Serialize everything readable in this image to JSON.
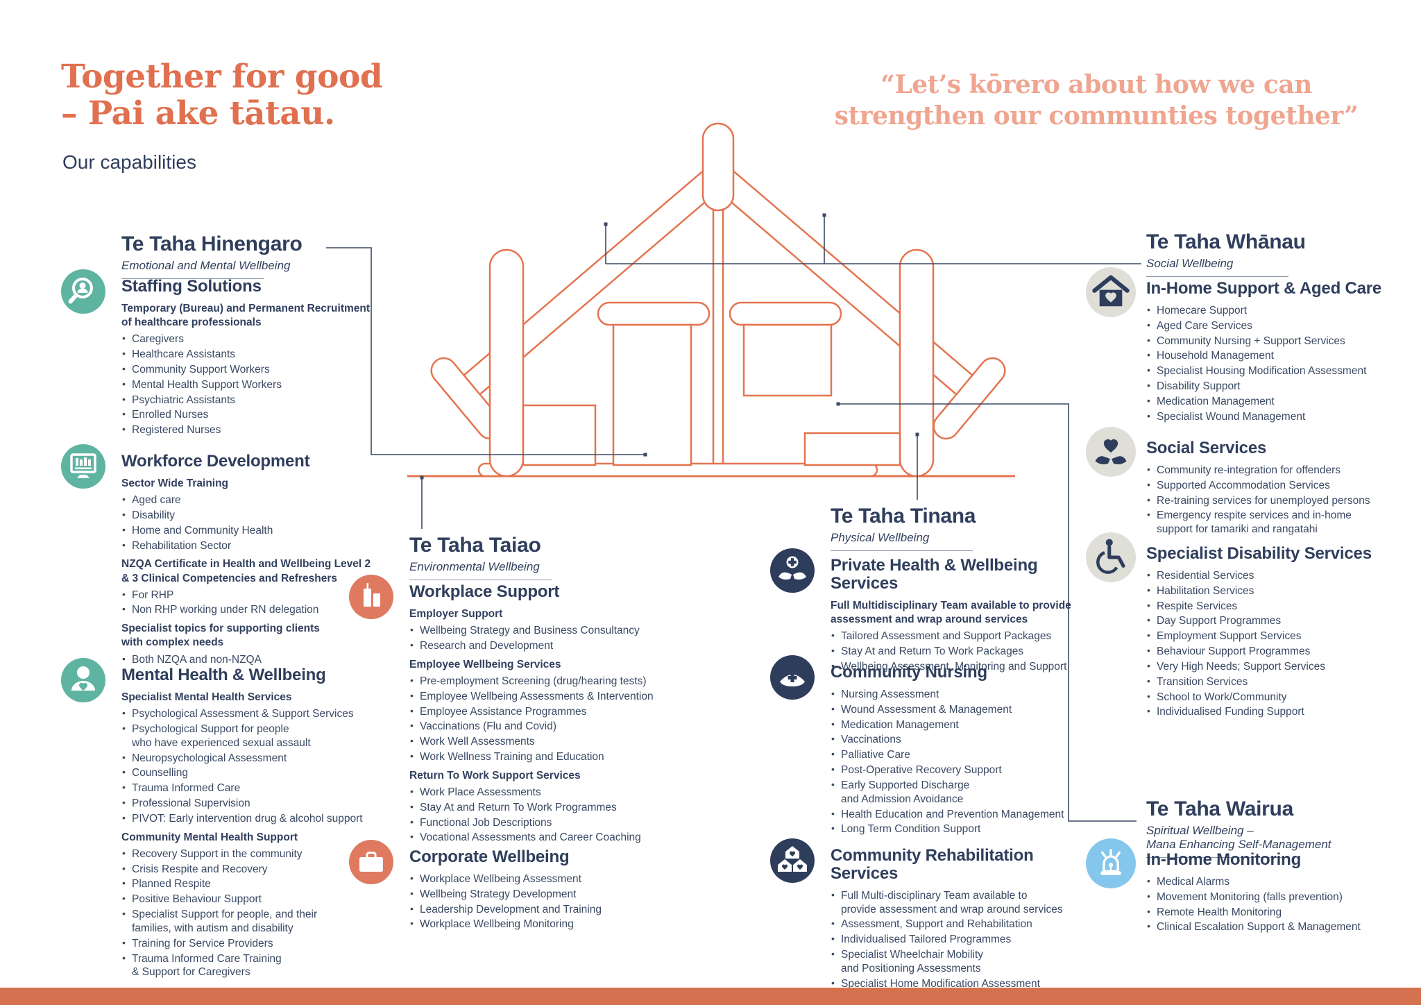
{
  "header": {
    "title_line1": "Together for good",
    "title_line2": "– Pai ake tātau.",
    "subtitle": "Our capabilities",
    "quote_line1": "“Let’s kōrero about how we can",
    "quote_line2": "strengthen our communties together”"
  },
  "colors": {
    "title_coral": "#E0704F",
    "quote_salmon": "#EFA58F",
    "navy_text": "#31405E",
    "house_line": "#E4744F",
    "connector": "#3C4A63",
    "accent_teal": "#5FB3A1",
    "accent_coral": "#DF7A61",
    "accent_navy": "#2E3D5B",
    "circle_gray": "#DFDFD8",
    "accent_blue": "#85C6EC",
    "bottom_bar": "#D4714F"
  },
  "sections": [
    {
      "id": "hinengaro",
      "title": "Te Taha Hinengaro",
      "subtitle": "Emotional and Mental Wellbeing",
      "blocks": [
        {
          "icon": "magnifier-person-icon",
          "icon_bg": "#5FB3A1",
          "heading": "Staffing Solutions",
          "groups": [
            {
              "label": "Temporary (Bureau) and Permanent Recruitment\nof healthcare professionals",
              "items": [
                "Caregivers",
                "Healthcare Assistants",
                "Community Support Workers",
                "Mental Health Support Workers",
                "Psychiatric Assistants",
                "Enrolled Nurses",
                "Registered Nurses"
              ]
            }
          ]
        },
        {
          "icon": "training-monitor-icon",
          "icon_bg": "#5FB3A1",
          "heading": "Workforce Development",
          "groups": [
            {
              "label": "Sector Wide Training",
              "items": [
                "Aged care",
                "Disability",
                "Home and Community Health",
                "Rehabilitation Sector"
              ]
            },
            {
              "label": "NZQA Certificate in Health and Wellbeing Level 2\n& 3 Clinical Competencies and Refreshers",
              "items": [
                "For RHP",
                "Non RHP working under RN delegation"
              ]
            },
            {
              "label": "Specialist topics for supporting clients\nwith complex needs",
              "items": [
                "Both NZQA and non-NZQA"
              ]
            }
          ]
        },
        {
          "icon": "person-heart-icon",
          "icon_bg": "#5FB3A1",
          "heading": "Mental Health & Wellbeing",
          "groups": [
            {
              "label": "Specialist Mental Health Services",
              "items": [
                "Psychological Assessment & Support Services",
                "Psychological Support for people\nwho have experienced sexual assault",
                "Neuropsychological Assessment",
                "Counselling",
                "Trauma Informed Care",
                "Professional Supervision",
                "PIVOT: Early intervention drug & alcohol support"
              ]
            },
            {
              "label": "Community Mental Health Support",
              "items": [
                "Recovery Support in the community",
                "Crisis Respite and Recovery",
                "Planned Respite",
                "Positive Behaviour Support",
                "Specialist Support for people, and their\nfamilies, with autism and disability",
                "Training for Service Providers",
                "Trauma Informed Care Training\n& Support for Caregivers"
              ]
            }
          ]
        }
      ]
    },
    {
      "id": "taiao",
      "title": "Te Taha Taiao",
      "subtitle": "Environmental Wellbeing",
      "blocks": [
        {
          "icon": "buildings-icon",
          "icon_bg": "#DF7A61",
          "heading": "Workplace Support",
          "groups": [
            {
              "label": "Employer Support",
              "items": [
                "Wellbeing Strategy and Business Consultancy",
                "Research and Development"
              ]
            },
            {
              "label": "Employee Wellbeing Services",
              "items": [
                "Pre-employment Screening (drug/hearing tests)",
                "Employee Wellbeing Assessments & Intervention",
                "Employee Assistance Programmes",
                "Vaccinations (Flu and Covid)",
                "Work Well Assessments",
                "Work Wellness Training and Education"
              ]
            },
            {
              "label": "Return To Work Support Services",
              "items": [
                "Work Place Assessments",
                "Stay At and Return To Work Programmes",
                "Functional Job Descriptions",
                "Vocational Assessments and Career Coaching"
              ]
            }
          ]
        },
        {
          "icon": "briefcase-icon",
          "icon_bg": "#DF7A61",
          "heading": "Corporate Wellbeing",
          "groups": [
            {
              "label": "",
              "items": [
                "Workplace Wellbeing Assessment",
                "Wellbeing Strategy Development",
                "Leadership Development and Training",
                "Workplace Wellbeing Monitoring"
              ]
            }
          ]
        }
      ]
    },
    {
      "id": "tinana",
      "title": "Te Taha Tinana",
      "subtitle": "Physical Wellbeing",
      "blocks": [
        {
          "icon": "hands-cross-icon",
          "icon_bg": "#2E3D5B",
          "heading": "Private Health & Wellbeing Services",
          "groups": [
            {
              "label": "Full Multidisciplinary Team available to provide\nassessment and wrap around services",
              "items": [
                "Tailored Assessment and Support Packages",
                "Stay At and Return To Work Packages",
                "Wellbeing Assessment, Monitoring and Support"
              ]
            }
          ]
        },
        {
          "icon": "nurse-cap-icon",
          "icon_bg": "#2E3D5B",
          "heading": "Community Nursing",
          "groups": [
            {
              "label": "",
              "items": [
                "Nursing Assessment",
                "Wound Assessment & Management",
                "Medication Management",
                "Vaccinations",
                "Palliative Care",
                "Post-Operative Recovery Support",
                "Early Supported Discharge\nand Admission Avoidance",
                "Health Education and Prevention Management",
                "Long Term Condition Support"
              ]
            }
          ]
        },
        {
          "icon": "houses-icon",
          "icon_bg": "#2E3D5B",
          "heading": "Community Rehabilitation Services",
          "groups": [
            {
              "label": "",
              "items": [
                "Full Multi-disciplinary Team available to\nprovide assessment and wrap around services",
                "Assessment, Support and Rehabilitation",
                "Individualised Tailored Programmes",
                "Specialist Wheelchair Mobility\nand Positioning Assessments",
                "Specialist Home Modification Assessment"
              ]
            }
          ]
        }
      ]
    },
    {
      "id": "whanau",
      "title": "Te Taha Whānau",
      "subtitle": "Social Wellbeing",
      "blocks": [
        {
          "icon": "house-heart-icon",
          "icon_bg": "#DFDFD8",
          "heading": "In-Home Support & Aged Care",
          "groups": [
            {
              "label": "",
              "items": [
                "Homecare Support",
                "Aged Care Services",
                "Community Nursing + Support Services",
                "Household Management",
                "Specialist Housing Modification Assessment",
                "Disability Support",
                "Medication Management",
                "Specialist Wound Management"
              ]
            }
          ]
        },
        {
          "icon": "hands-heart-icon",
          "icon_bg": "#DFDFD8",
          "heading": "Social Services",
          "groups": [
            {
              "label": "",
              "items": [
                "Community re-integration for offenders",
                "Supported Accommodation Services",
                "Re-training services for unemployed persons",
                "Emergency respite services and in-home\nsupport for tamariki and rangatahi"
              ]
            }
          ]
        },
        {
          "icon": "wheelchair-icon",
          "icon_bg": "#DFDFD8",
          "heading": "Specialist Disability Services",
          "groups": [
            {
              "label": "",
              "items": [
                "Residential Services",
                "Habilitation Services",
                "Respite Services",
                "Day Support Programmes",
                "Employment Support Services",
                "Behaviour Support Programmes",
                "Very High Needs; Support Services",
                "Transition Services",
                "School to Work/Community",
                "Individualised Funding Support"
              ]
            }
          ]
        }
      ]
    },
    {
      "id": "wairua",
      "title": "Te Taha Wairua",
      "subtitle": "Spiritual Wellbeing –\nMana Enhancing Self-Management",
      "blocks": [
        {
          "icon": "alarm-beacon-icon",
          "icon_bg": "#85C6EC",
          "heading": "In-Home Monitoring",
          "groups": [
            {
              "label": "",
              "items": [
                "Medical Alarms",
                "Movement Monitoring (falls prevention)",
                "Remote Health Monitoring",
                "Clinical Escalation Support & Management"
              ]
            }
          ]
        }
      ]
    }
  ]
}
